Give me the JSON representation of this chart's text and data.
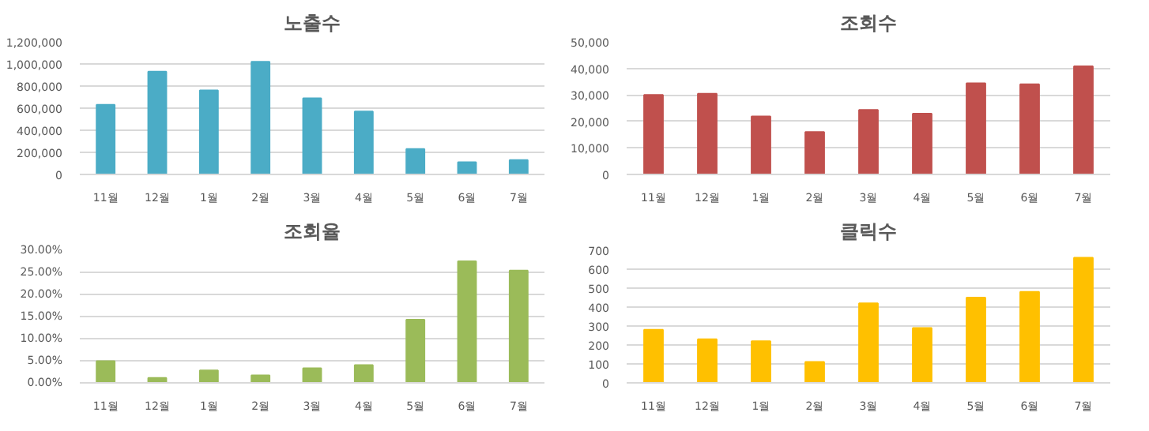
{
  "chart_data": [
    {
      "type": "bar",
      "title": "노출수",
      "categories": [
        "11월",
        "12월",
        "1월",
        "2월",
        "3월",
        "4월",
        "5월",
        "6월",
        "7월"
      ],
      "series": [
        {
          "color": "#4bacc6",
          "values": [
            630000,
            930000,
            760000,
            1020000,
            690000,
            570000,
            230000,
            110000,
            130000
          ]
        }
      ],
      "ylim": [
        0,
        1200000
      ],
      "yticks": [
        {
          "value": 0,
          "label": "0"
        },
        {
          "value": 200000,
          "label": "200,000"
        },
        {
          "value": 400000,
          "label": "400,000"
        },
        {
          "value": 600000,
          "label": "600,000"
        },
        {
          "value": 800000,
          "label": "800,000"
        },
        {
          "value": 1000000,
          "label": "1,000,000"
        },
        {
          "value": 1200000,
          "label": "1,200,000"
        }
      ],
      "grid": "y"
    },
    {
      "type": "bar",
      "title": "조회수",
      "categories": [
        "11월",
        "12월",
        "1월",
        "2월",
        "3월",
        "4월",
        "5월",
        "6월",
        "7월"
      ],
      "series": [
        {
          "color": "#c0504d",
          "values": [
            30000,
            30400,
            21900,
            16000,
            24300,
            22900,
            34400,
            34000,
            40800
          ]
        }
      ],
      "ylim": [
        0,
        50000
      ],
      "yticks": [
        0,
        {
          "value": 10000,
          "label": "10,000"
        },
        {
          "value": 20000,
          "label": "20,000"
        },
        {
          "value": 30000,
          "label": "30,000"
        },
        {
          "value": 40000,
          "label": "40,000"
        },
        {
          "value": 50000,
          "label": "50,000"
        }
      ],
      "grid": "y"
    },
    {
      "type": "bar",
      "title": "조회율",
      "categories": [
        "11월",
        "12월",
        "1월",
        "2월",
        "3월",
        "4월",
        "5월",
        "6월",
        "7월"
      ],
      "series": [
        {
          "color": "#9bbb59",
          "values": [
            4.9,
            1.1,
            2.8,
            1.7,
            3.3,
            4.0,
            14.3,
            27.5,
            25.4
          ]
        }
      ],
      "ylim": [
        0,
        30
      ],
      "yticks": [
        {
          "value": 0,
          "label": "0.00%"
        },
        {
          "value": 5,
          "label": "5.00%"
        },
        {
          "value": 10,
          "label": "10.00%"
        },
        {
          "value": 15,
          "label": "15.00%"
        },
        {
          "value": 20,
          "label": "20.00%"
        },
        {
          "value": 25,
          "label": "25.00%"
        },
        {
          "value": 30,
          "label": "30.00%"
        }
      ],
      "grid": "y"
    },
    {
      "type": "bar",
      "title": "클릭수",
      "categories": [
        "11월",
        "12월",
        "1월",
        "2월",
        "3월",
        "4월",
        "5월",
        "6월",
        "7월"
      ],
      "series": [
        {
          "color": "#ffc000",
          "values": [
            280,
            230,
            220,
            110,
            420,
            290,
            450,
            480,
            660
          ]
        }
      ],
      "ylim": [
        0,
        700
      ],
      "yticks": [
        0,
        100,
        200,
        300,
        400,
        500,
        600,
        700
      ],
      "grid": "y"
    }
  ]
}
